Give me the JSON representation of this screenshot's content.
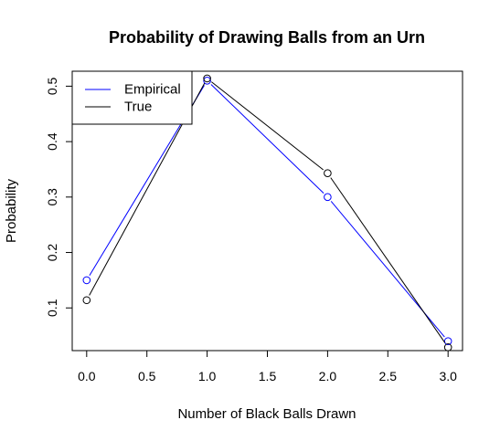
{
  "chart_data": {
    "type": "line",
    "title": "Probability of Drawing Balls from an Urn",
    "xlabel": "Number of Black Balls Drawn",
    "ylabel": "Probability",
    "xlim": [
      -0.12,
      3.12
    ],
    "ylim": [
      0.023,
      0.527
    ],
    "x_ticks": [
      0.0,
      0.5,
      1.0,
      1.5,
      2.0,
      2.5,
      3.0
    ],
    "x_tick_labels": [
      "0.0",
      "0.5",
      "1.0",
      "1.5",
      "2.0",
      "2.5",
      "3.0"
    ],
    "y_ticks": [
      0.1,
      0.2,
      0.3,
      0.4,
      0.5
    ],
    "y_tick_labels": [
      "0.1",
      "0.2",
      "0.3",
      "0.4",
      "0.5"
    ],
    "grid": false,
    "legend_position": "top-left",
    "x": [
      0,
      1,
      2,
      3
    ],
    "series": [
      {
        "name": "Empirical",
        "color": "#0000ff",
        "values": [
          0.15,
          0.51,
          0.3,
          0.04
        ]
      },
      {
        "name": "True",
        "color": "#000000",
        "values": [
          0.114,
          0.514,
          0.343,
          0.029
        ]
      }
    ]
  }
}
